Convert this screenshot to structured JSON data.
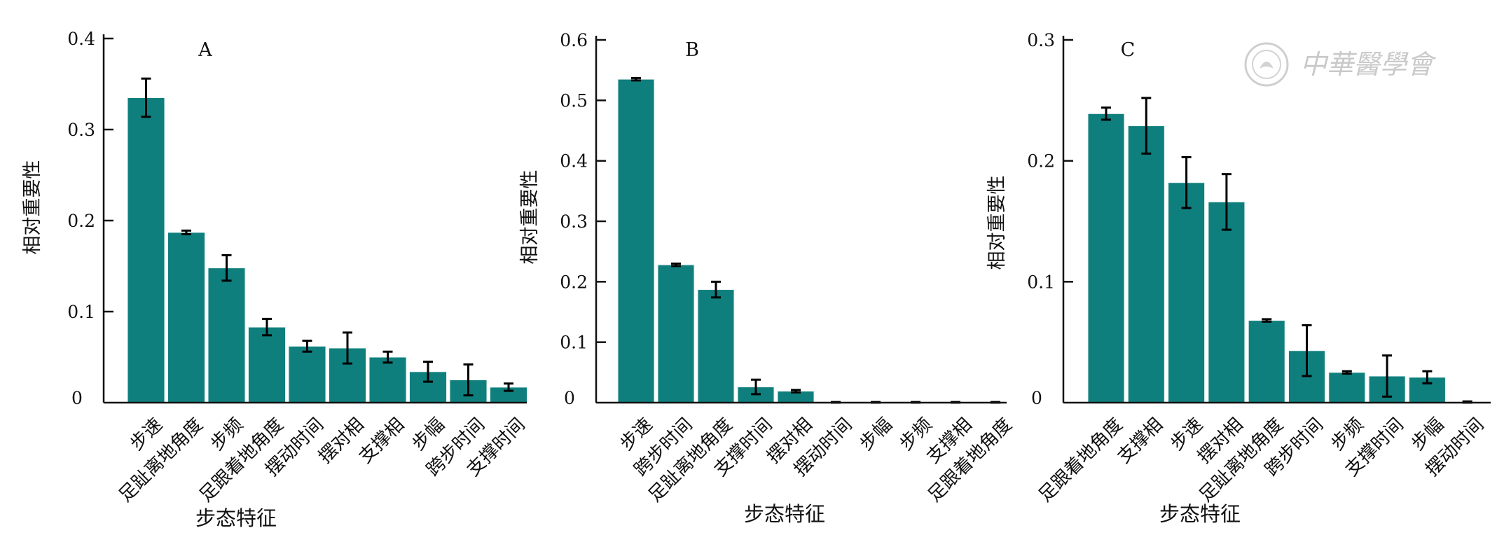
{
  "watermark": {
    "text": "中華醫學會",
    "color": "#c9c9c9"
  },
  "style": {
    "bar_color": "#0f7f7d",
    "axis_color": "#111111",
    "error_color": "#000000"
  },
  "chart_data": [
    {
      "type": "bar",
      "panel_label": "A",
      "ylabel": "相对重要性",
      "xlabel": "步态特征",
      "ylim": [
        0,
        0.4
      ],
      "yticks": [
        "0",
        "0.1",
        "0.2",
        "0.3",
        "0.4"
      ],
      "grid": false,
      "categories": [
        "步速",
        "足趾离地角度",
        "步频",
        "足跟着地角度",
        "摆动时间",
        "摆对相",
        "支撑相",
        "步幅",
        "跨步时间",
        "支撑时间"
      ],
      "values": [
        0.335,
        0.187,
        0.148,
        0.083,
        0.062,
        0.06,
        0.05,
        0.034,
        0.025,
        0.017
      ],
      "errors": [
        0.021,
        0.002,
        0.014,
        0.009,
        0.006,
        0.017,
        0.006,
        0.011,
        0.017,
        0.004
      ]
    },
    {
      "type": "bar",
      "panel_label": "B",
      "ylabel": "相对重要性",
      "xlabel": "步态特征",
      "ylim": [
        0,
        0.6
      ],
      "yticks": [
        "0",
        "0.1",
        "0.2",
        "0.3",
        "0.4",
        "0.5",
        "0.6"
      ],
      "grid": false,
      "categories": [
        "步速",
        "跨步时间",
        "足趾离地角度",
        "支撑时间",
        "摆对相",
        "摆动时间",
        "步幅",
        "步频",
        "支撑相",
        "足跟着地角度"
      ],
      "values": [
        0.535,
        0.228,
        0.187,
        0.026,
        0.019,
        0.0,
        0.0,
        0.0,
        0.0,
        0.0
      ],
      "errors": [
        0.002,
        0.002,
        0.013,
        0.012,
        0.002,
        0.001,
        0.001,
        0.001,
        0.001,
        0.001
      ]
    },
    {
      "type": "bar",
      "panel_label": "C",
      "ylabel": "相对重要性",
      "xlabel": "步态特征",
      "ylim": [
        0,
        0.3
      ],
      "yticks": [
        "0",
        "0.1",
        "0.2",
        "0.3"
      ],
      "grid": false,
      "categories": [
        "足跟着地角度",
        "支撑相",
        "步速",
        "摆对相",
        "足趾离地角度",
        "跨步时间",
        "步频",
        "支撑时间",
        "步幅",
        "摆动时间"
      ],
      "values": [
        0.239,
        0.229,
        0.182,
        0.166,
        0.068,
        0.043,
        0.025,
        0.022,
        0.021,
        0.0
      ],
      "errors": [
        0.005,
        0.023,
        0.021,
        0.023,
        0.001,
        0.021,
        0.001,
        0.017,
        0.005,
        0.001
      ]
    }
  ]
}
